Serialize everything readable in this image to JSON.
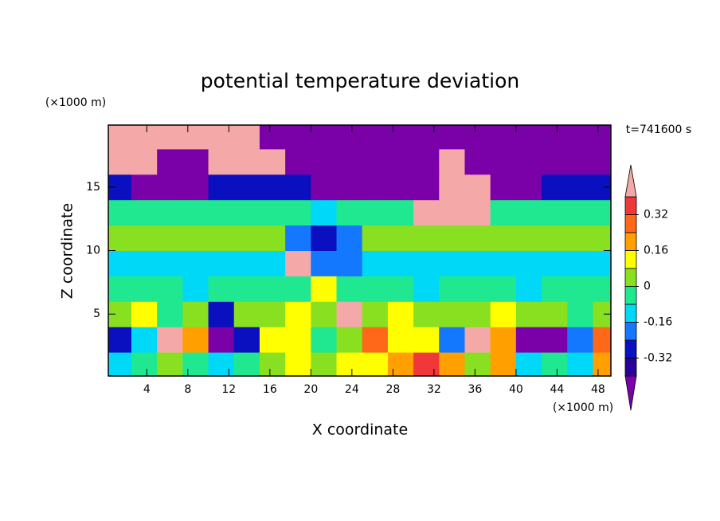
{
  "chart_data": {
    "type": "contour",
    "title": "potential temperature deviation",
    "xlabel": "X coordinate",
    "ylabel": "Z coordinate",
    "x_unit": "(×1000 m)",
    "y_unit": "(×1000 m)",
    "annotation": "t=741600 s",
    "xlim": [
      0.25,
      49.25
    ],
    "ylim": [
      0.125,
      19.875
    ],
    "xticks": [
      4,
      8,
      12,
      16,
      20,
      24,
      28,
      32,
      36,
      40,
      44,
      48
    ],
    "yticks": [
      5,
      10,
      15
    ],
    "levels": [
      -0.4,
      -0.32,
      -0.24,
      -0.16,
      -0.08,
      0,
      0.08,
      0.16,
      0.24,
      0.32,
      0.4
    ],
    "colors": [
      "#7a00a8",
      "#28009a",
      "#0a10c0",
      "#1478ff",
      "#00d8f8",
      "#20e890",
      "#88e020",
      "#ffff00",
      "#ffa000",
      "#ff6818",
      "#f03838",
      "#f4a8a8"
    ],
    "colorbar_ticks": [
      -0.32,
      -0.16,
      0,
      0.16,
      0.32
    ],
    "x": [
      1.25,
      3.75,
      6.25,
      8.75,
      11.25,
      13.75,
      16.25,
      18.75,
      21.25,
      23.75,
      26.25,
      28.75,
      31.25,
      33.75,
      36.25,
      38.75,
      41.25,
      43.75,
      46.25,
      48.75
    ],
    "y": [
      1,
      3,
      5,
      7,
      9,
      11,
      13,
      15,
      17,
      19
    ],
    "z": [
      [
        -0.1,
        -0.05,
        0.05,
        -0.05,
        -0.1,
        -0.05,
        0.05,
        0.12,
        0.05,
        0.12,
        0.1,
        0.2,
        0.36,
        0.2,
        0.05,
        0.2,
        -0.1,
        -0.05,
        -0.1,
        0.2
      ],
      [
        -0.25,
        -0.1,
        0.45,
        0.2,
        -0.45,
        -0.3,
        0.1,
        0.12,
        -0.05,
        0.05,
        0.25,
        0.1,
        0.12,
        -0.2,
        0.45,
        0.2,
        -0.45,
        -0.45,
        -0.2,
        0.25
      ],
      [
        0.05,
        0.1,
        -0.05,
        0.05,
        -0.3,
        0.05,
        0.05,
        0.12,
        0.05,
        0.45,
        0.05,
        0.1,
        0.05,
        0.05,
        0.05,
        0.1,
        0.05,
        0.05,
        -0.05,
        0.05
      ],
      [
        -0.05,
        -0.05,
        -0.05,
        -0.1,
        -0.05,
        -0.05,
        -0.05,
        -0.05,
        0.12,
        -0.05,
        -0.05,
        -0.05,
        -0.1,
        -0.05,
        -0.05,
        -0.05,
        -0.1,
        -0.05,
        -0.05,
        -0.05
      ],
      [
        -0.1,
        -0.1,
        -0.12,
        -0.1,
        -0.1,
        -0.1,
        -0.1,
        0.45,
        -0.2,
        -0.2,
        -0.12,
        -0.1,
        -0.1,
        -0.1,
        -0.12,
        -0.1,
        -0.1,
        -0.12,
        -0.1,
        -0.1
      ],
      [
        0.03,
        0.05,
        0.05,
        0.05,
        0.03,
        0.03,
        0.03,
        -0.2,
        -0.28,
        -0.2,
        0.03,
        0.03,
        0.05,
        0.05,
        0.05,
        0.03,
        0.03,
        0.03,
        0.03,
        0.03
      ],
      [
        -0.05,
        -0.05,
        -0.05,
        -0.05,
        -0.05,
        -0.05,
        -0.05,
        -0.05,
        -0.1,
        -0.05,
        -0.05,
        -0.05,
        0.45,
        0.45,
        0.45,
        -0.05,
        -0.05,
        -0.05,
        -0.05,
        -0.05
      ],
      [
        -0.3,
        -0.45,
        -0.45,
        -0.45,
        -0.3,
        -0.3,
        -0.3,
        -0.3,
        -0.45,
        -0.45,
        -0.45,
        -0.45,
        -0.45,
        0.45,
        0.45,
        -0.45,
        -0.45,
        -0.3,
        -0.3,
        -0.3
      ],
      [
        0.45,
        0.45,
        -0.45,
        -0.45,
        0.45,
        0.45,
        0.45,
        -0.45,
        -0.45,
        -0.45,
        -0.45,
        -0.45,
        -0.45,
        0.45,
        -0.45,
        -0.45,
        -0.45,
        -0.45,
        -0.45,
        -0.45
      ],
      [
        0.45,
        0.45,
        0.45,
        0.45,
        0.45,
        0.45,
        -0.45,
        -0.45,
        -0.45,
        -0.45,
        -0.45,
        -0.45,
        -0.45,
        -0.45,
        -0.45,
        -0.45,
        -0.45,
        -0.45,
        -0.45,
        -0.45
      ]
    ]
  }
}
